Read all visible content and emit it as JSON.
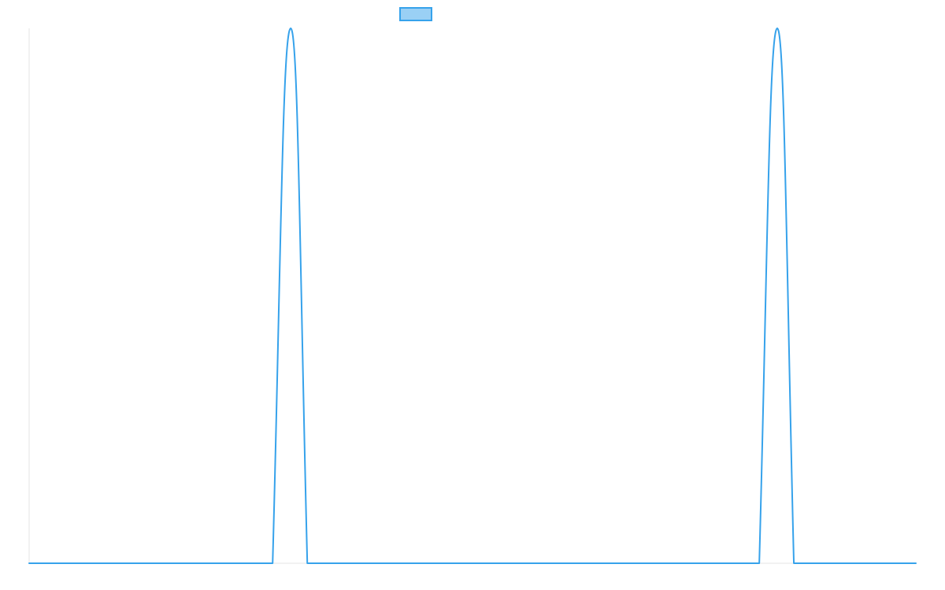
{
  "chart_data": {
    "type": "line",
    "title": "",
    "xlabel": "",
    "ylabel": "",
    "grid": false,
    "legend": {
      "placement": "top-center",
      "entries": [
        {
          "label": "",
          "color": "#36a2eb",
          "fill": "#9ad0f5"
        }
      ]
    },
    "xlim": [
      0,
      1
    ],
    "ylim": [
      0,
      1
    ],
    "series": [
      {
        "color": "#36a2eb",
        "points": [
          {
            "x": 0.0,
            "y": 0.0
          },
          {
            "x": 0.2746,
            "y": 0.0
          },
          {
            "x": 0.295,
            "y": 1.0
          },
          {
            "x": 0.3137,
            "y": 0.0
          },
          {
            "x": 0.8234,
            "y": 0.0
          },
          {
            "x": 0.8437,
            "y": 1.0
          },
          {
            "x": 0.8624,
            "y": 0.0
          },
          {
            "x": 1.0,
            "y": 0.0
          }
        ]
      }
    ]
  },
  "colors": {
    "background": "#ffffff",
    "axis": "#e6e6e6",
    "line": "#36a2eb",
    "legend_fill": "#9ad0f5"
  }
}
